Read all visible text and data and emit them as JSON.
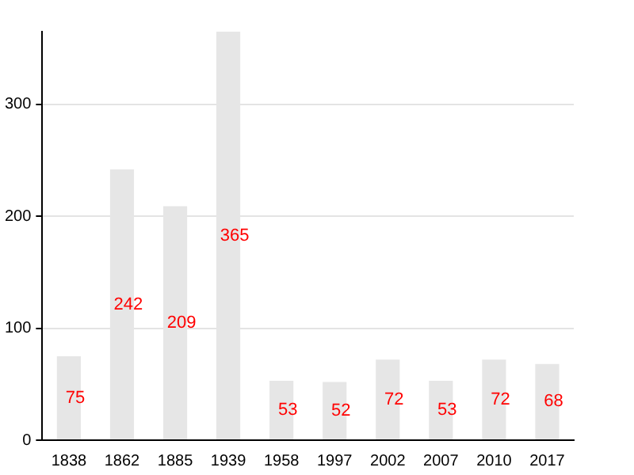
{
  "chart_data": {
    "type": "bar",
    "categories": [
      "1838",
      "1862",
      "1885",
      "1939",
      "1958",
      "1997",
      "2002",
      "2007",
      "2010",
      "2017"
    ],
    "values": [
      75,
      242,
      209,
      365,
      53,
      52,
      72,
      53,
      72,
      68
    ],
    "color": "#e6e6e6",
    "ylim": [
      0,
      365
    ],
    "yticks": [
      0,
      100,
      200,
      300
    ],
    "grid": "y",
    "data_labels": true,
    "legend": false
  }
}
